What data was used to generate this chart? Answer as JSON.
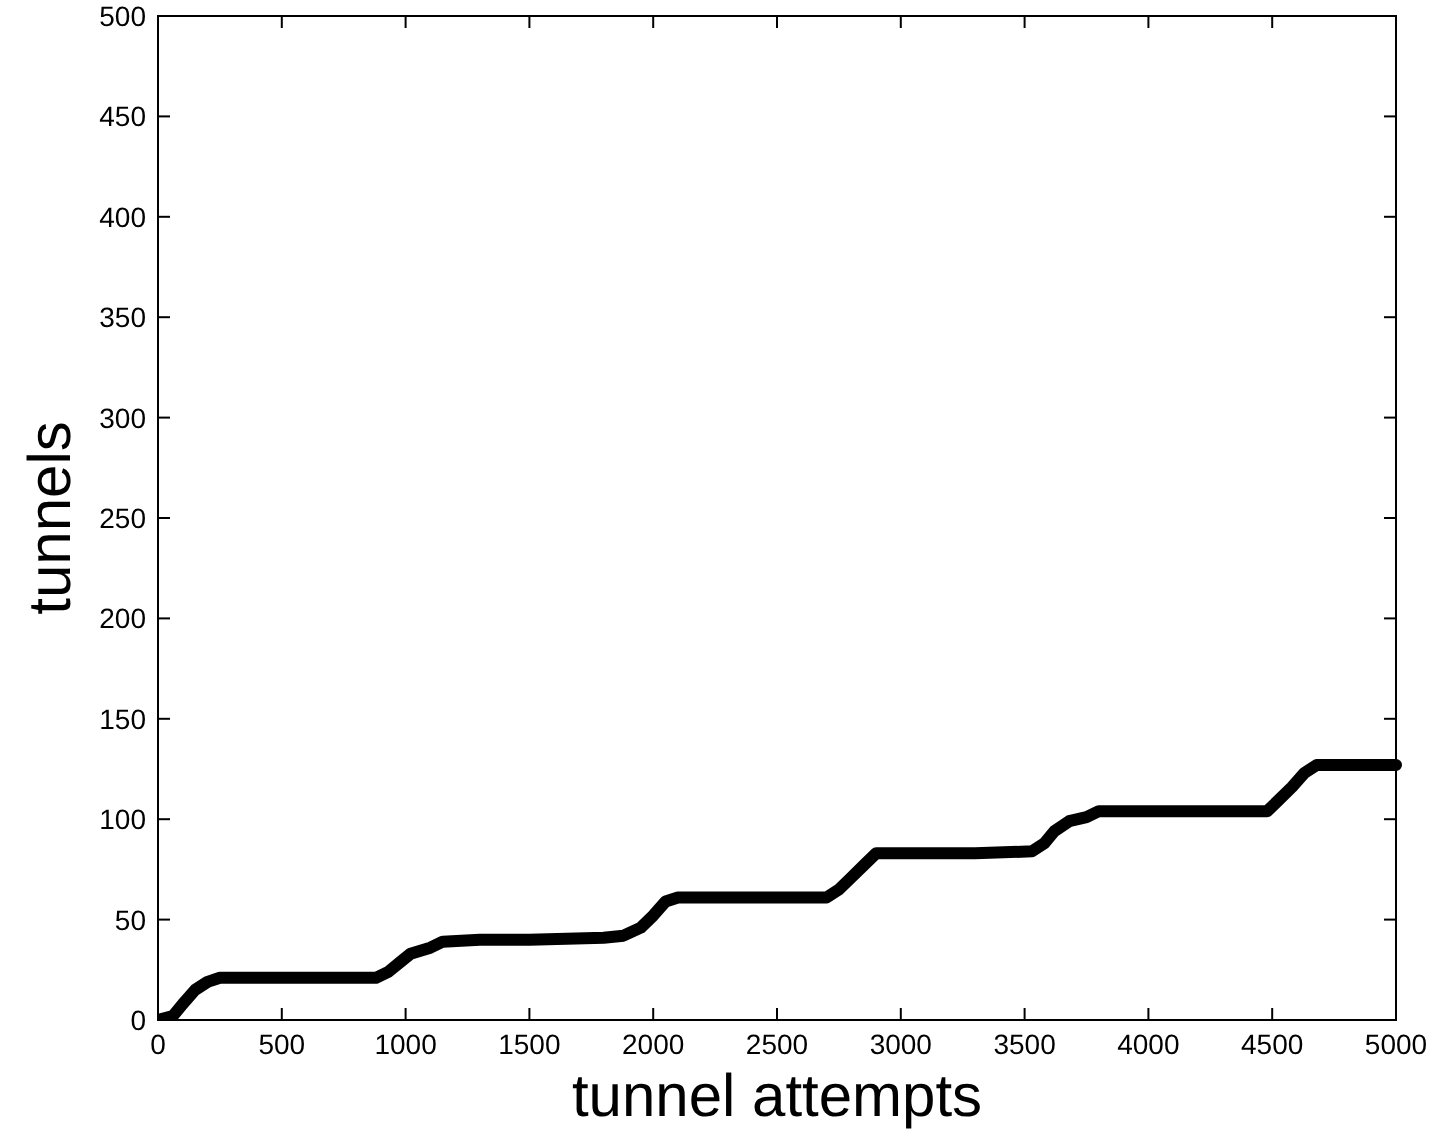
{
  "chart_data": {
    "type": "line",
    "xlabel": "tunnel attempts",
    "ylabel": "tunnels",
    "xlim": [
      0,
      5000
    ],
    "ylim": [
      0,
      500
    ],
    "xticks": [
      0,
      500,
      1000,
      1500,
      2000,
      2500,
      3000,
      3500,
      4000,
      4500,
      5000
    ],
    "yticks": [
      0,
      50,
      100,
      150,
      200,
      250,
      300,
      350,
      400,
      450,
      500
    ],
    "grid": false,
    "marker": "none",
    "line_style": "solid",
    "series": [
      {
        "color": "#000000",
        "x": [
          0,
          60,
          100,
          150,
          200,
          250,
          500,
          880,
          930,
          980,
          1020,
          1100,
          1150,
          1300,
          1500,
          1800,
          1880,
          1950,
          2000,
          2050,
          2100,
          2400,
          2700,
          2750,
          2800,
          2850,
          2900,
          3000,
          3300,
          3530,
          3580,
          3620,
          3680,
          3750,
          3800,
          4000,
          4480,
          4530,
          4580,
          4630,
          4680,
          5000
        ],
        "values": [
          0,
          2,
          8,
          15,
          19,
          21,
          21,
          21,
          24,
          29,
          33,
          36,
          39,
          40,
          40,
          41,
          42,
          46,
          52,
          59,
          61,
          61,
          61,
          65,
          71,
          77,
          83,
          83,
          83,
          84,
          88,
          94,
          99,
          101,
          104,
          104,
          104,
          110,
          116,
          123,
          127,
          127
        ]
      }
    ]
  }
}
